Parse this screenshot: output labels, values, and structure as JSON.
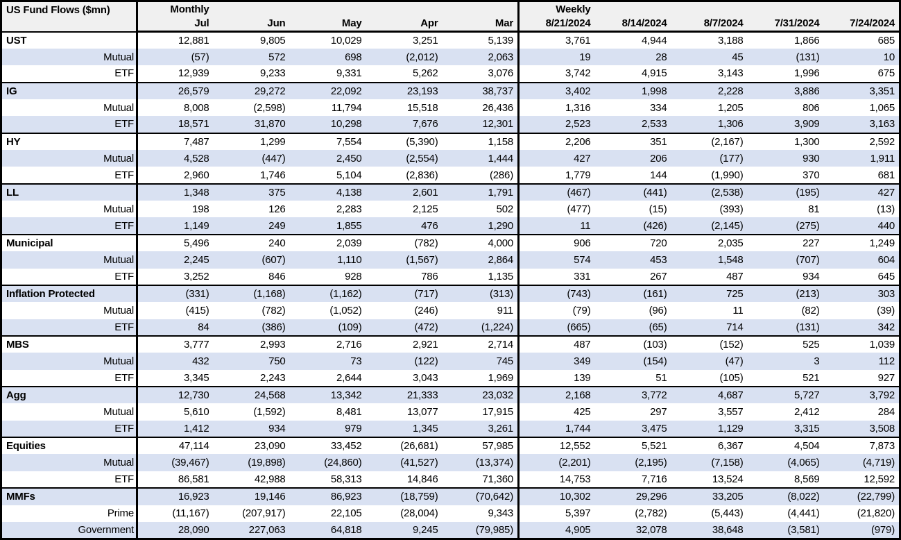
{
  "header": {
    "title": "US Fund Flows ($mn)",
    "monthly_label": "Monthly",
    "weekly_label": "Weekly",
    "monthly_columns": [
      "Jul",
      "Jun",
      "May",
      "Apr",
      "Mar"
    ],
    "weekly_columns": [
      "8/21/2024",
      "8/14/2024",
      "8/7/2024",
      "7/31/2024",
      "7/24/2024"
    ]
  },
  "colors": {
    "band_fill": "#d9e1f2",
    "header_fill": "#f0f0f0",
    "border": "#000000",
    "text": "#000000"
  },
  "rows": [
    {
      "label": "UST",
      "type": "group",
      "monthly": [
        "12,881",
        "9,805",
        "10,029",
        "3,251",
        "5,139"
      ],
      "weekly": [
        "3,761",
        "4,944",
        "3,188",
        "1,866",
        "685"
      ]
    },
    {
      "label": "Mutual",
      "type": "sub",
      "monthly": [
        "(57)",
        "572",
        "698",
        "(2,012)",
        "2,063"
      ],
      "weekly": [
        "19",
        "28",
        "45",
        "(131)",
        "10"
      ]
    },
    {
      "label": "ETF",
      "type": "sub",
      "monthly": [
        "12,939",
        "9,233",
        "9,331",
        "5,262",
        "3,076"
      ],
      "weekly": [
        "3,742",
        "4,915",
        "3,143",
        "1,996",
        "675"
      ]
    },
    {
      "label": "IG",
      "type": "group",
      "monthly": [
        "26,579",
        "29,272",
        "22,092",
        "23,193",
        "38,737"
      ],
      "weekly": [
        "3,402",
        "1,998",
        "2,228",
        "3,886",
        "3,351"
      ]
    },
    {
      "label": "Mutual",
      "type": "sub",
      "monthly": [
        "8,008",
        "(2,598)",
        "11,794",
        "15,518",
        "26,436"
      ],
      "weekly": [
        "1,316",
        "334",
        "1,205",
        "806",
        "1,065"
      ]
    },
    {
      "label": "ETF",
      "type": "sub",
      "monthly": [
        "18,571",
        "31,870",
        "10,298",
        "7,676",
        "12,301"
      ],
      "weekly": [
        "2,523",
        "2,533",
        "1,306",
        "3,909",
        "3,163"
      ]
    },
    {
      "label": "HY",
      "type": "group",
      "monthly": [
        "7,487",
        "1,299",
        "7,554",
        "(5,390)",
        "1,158"
      ],
      "weekly": [
        "2,206",
        "351",
        "(2,167)",
        "1,300",
        "2,592"
      ]
    },
    {
      "label": "Mutual",
      "type": "sub",
      "monthly": [
        "4,528",
        "(447)",
        "2,450",
        "(2,554)",
        "1,444"
      ],
      "weekly": [
        "427",
        "206",
        "(177)",
        "930",
        "1,911"
      ]
    },
    {
      "label": "ETF",
      "type": "sub",
      "monthly": [
        "2,960",
        "1,746",
        "5,104",
        "(2,836)",
        "(286)"
      ],
      "weekly": [
        "1,779",
        "144",
        "(1,990)",
        "370",
        "681"
      ]
    },
    {
      "label": "LL",
      "type": "group",
      "monthly": [
        "1,348",
        "375",
        "4,138",
        "2,601",
        "1,791"
      ],
      "weekly": [
        "(467)",
        "(441)",
        "(2,538)",
        "(195)",
        "427"
      ]
    },
    {
      "label": "Mutual",
      "type": "sub",
      "monthly": [
        "198",
        "126",
        "2,283",
        "2,125",
        "502"
      ],
      "weekly": [
        "(477)",
        "(15)",
        "(393)",
        "81",
        "(13)"
      ]
    },
    {
      "label": "ETF",
      "type": "sub",
      "monthly": [
        "1,149",
        "249",
        "1,855",
        "476",
        "1,290"
      ],
      "weekly": [
        "11",
        "(426)",
        "(2,145)",
        "(275)",
        "440"
      ]
    },
    {
      "label": "Municipal",
      "type": "group",
      "monthly": [
        "5,496",
        "240",
        "2,039",
        "(782)",
        "4,000"
      ],
      "weekly": [
        "906",
        "720",
        "2,035",
        "227",
        "1,249"
      ]
    },
    {
      "label": "Mutual",
      "type": "sub",
      "monthly": [
        "2,245",
        "(607)",
        "1,110",
        "(1,567)",
        "2,864"
      ],
      "weekly": [
        "574",
        "453",
        "1,548",
        "(707)",
        "604"
      ]
    },
    {
      "label": "ETF",
      "type": "sub",
      "monthly": [
        "3,252",
        "846",
        "928",
        "786",
        "1,135"
      ],
      "weekly": [
        "331",
        "267",
        "487",
        "934",
        "645"
      ]
    },
    {
      "label": "Inflation Protected",
      "type": "group",
      "monthly": [
        "(331)",
        "(1,168)",
        "(1,162)",
        "(717)",
        "(313)"
      ],
      "weekly": [
        "(743)",
        "(161)",
        "725",
        "(213)",
        "303"
      ]
    },
    {
      "label": "Mutual",
      "type": "sub",
      "monthly": [
        "(415)",
        "(782)",
        "(1,052)",
        "(246)",
        "911"
      ],
      "weekly": [
        "(79)",
        "(96)",
        "11",
        "(82)",
        "(39)"
      ]
    },
    {
      "label": "ETF",
      "type": "sub",
      "monthly": [
        "84",
        "(386)",
        "(109)",
        "(472)",
        "(1,224)"
      ],
      "weekly": [
        "(665)",
        "(65)",
        "714",
        "(131)",
        "342"
      ]
    },
    {
      "label": "MBS",
      "type": "group",
      "monthly": [
        "3,777",
        "2,993",
        "2,716",
        "2,921",
        "2,714"
      ],
      "weekly": [
        "487",
        "(103)",
        "(152)",
        "525",
        "1,039"
      ]
    },
    {
      "label": "Mutual",
      "type": "sub",
      "monthly": [
        "432",
        "750",
        "73",
        "(122)",
        "745"
      ],
      "weekly": [
        "349",
        "(154)",
        "(47)",
        "3",
        "112"
      ]
    },
    {
      "label": "ETF",
      "type": "sub",
      "monthly": [
        "3,345",
        "2,243",
        "2,644",
        "3,043",
        "1,969"
      ],
      "weekly": [
        "139",
        "51",
        "(105)",
        "521",
        "927"
      ]
    },
    {
      "label": "Agg",
      "type": "group",
      "monthly": [
        "12,730",
        "24,568",
        "13,342",
        "21,333",
        "23,032"
      ],
      "weekly": [
        "2,168",
        "3,772",
        "4,687",
        "5,727",
        "3,792"
      ]
    },
    {
      "label": "Mutual",
      "type": "sub",
      "monthly": [
        "5,610",
        "(1,592)",
        "8,481",
        "13,077",
        "17,915"
      ],
      "weekly": [
        "425",
        "297",
        "3,557",
        "2,412",
        "284"
      ]
    },
    {
      "label": "ETF",
      "type": "sub",
      "monthly": [
        "1,412",
        "934",
        "979",
        "1,345",
        "3,261"
      ],
      "weekly": [
        "1,744",
        "3,475",
        "1,129",
        "3,315",
        "3,508"
      ]
    },
    {
      "label": "Equities",
      "type": "group",
      "monthly": [
        "47,114",
        "23,090",
        "33,452",
        "(26,681)",
        "57,985"
      ],
      "weekly": [
        "12,552",
        "5,521",
        "6,367",
        "4,504",
        "7,873"
      ]
    },
    {
      "label": "Mutual",
      "type": "sub",
      "monthly": [
        "(39,467)",
        "(19,898)",
        "(24,860)",
        "(41,527)",
        "(13,374)"
      ],
      "weekly": [
        "(2,201)",
        "(2,195)",
        "(7,158)",
        "(4,065)",
        "(4,719)"
      ]
    },
    {
      "label": "ETF",
      "type": "sub",
      "monthly": [
        "86,581",
        "42,988",
        "58,313",
        "14,846",
        "71,360"
      ],
      "weekly": [
        "14,753",
        "7,716",
        "13,524",
        "8,569",
        "12,592"
      ]
    },
    {
      "label": "MMFs",
      "type": "group",
      "monthly": [
        "16,923",
        "19,146",
        "86,923",
        "(18,759)",
        "(70,642)"
      ],
      "weekly": [
        "10,302",
        "29,296",
        "33,205",
        "(8,022)",
        "(22,799)"
      ]
    },
    {
      "label": "Prime",
      "type": "sub",
      "monthly": [
        "(11,167)",
        "(207,917)",
        "22,105",
        "(28,004)",
        "9,343"
      ],
      "weekly": [
        "5,397",
        "(2,782)",
        "(5,443)",
        "(4,441)",
        "(21,820)"
      ]
    },
    {
      "label": "Government",
      "type": "sub",
      "monthly": [
        "28,090",
        "227,063",
        "64,818",
        "9,245",
        "(79,985)"
      ],
      "weekly": [
        "4,905",
        "32,078",
        "38,648",
        "(3,581)",
        "(979)"
      ]
    }
  ]
}
